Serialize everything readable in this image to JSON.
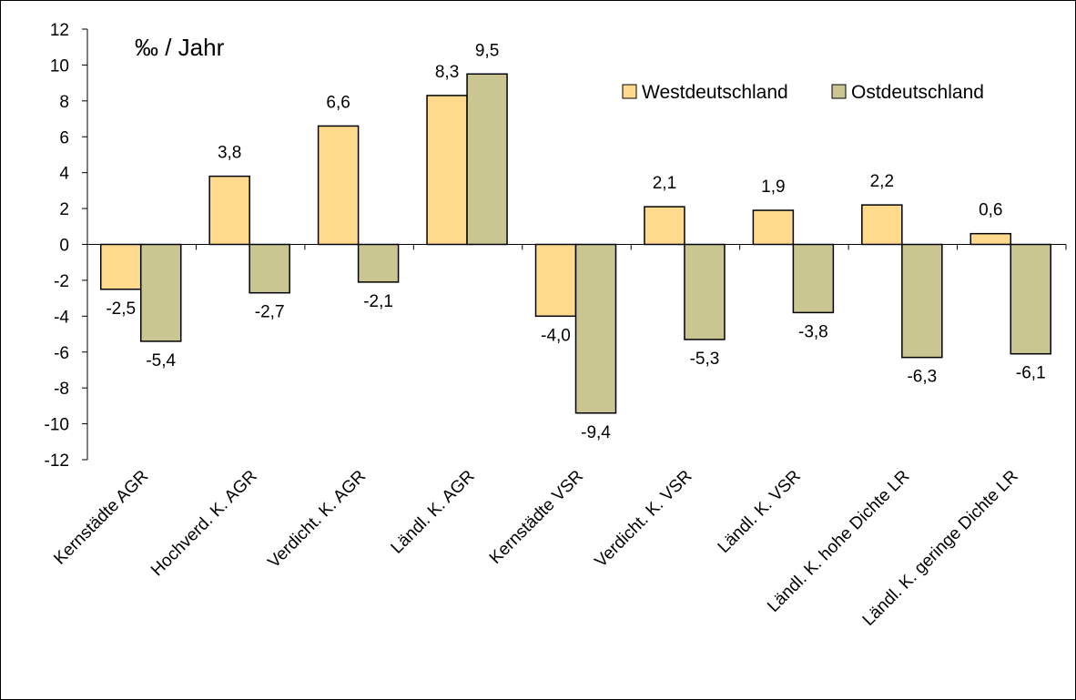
{
  "chart_data": {
    "type": "bar",
    "unit_label": "‰ / Jahr",
    "categories": [
      "Kernstädte AGR",
      "Hochverd. K. AGR",
      "Verdicht. K. AGR",
      "Ländl. K. AGR",
      "Kernstädte VSR",
      "Verdicht. K. VSR",
      "Ländl. K. VSR",
      "Ländl. K. hohe Dichte LR",
      "Ländl. K. geringe Dichte LR"
    ],
    "series": [
      {
        "name": "Westdeutschland",
        "color": "#ffd98c",
        "values": [
          -2.5,
          3.8,
          6.6,
          8.3,
          -4.0,
          2.1,
          1.9,
          2.2,
          0.6
        ],
        "labels": [
          "-2,5",
          "3,8",
          "6,6",
          "8,3",
          "-4,0",
          "2,1",
          "1,9",
          "2,2",
          "0,6"
        ]
      },
      {
        "name": "Ostdeutschland",
        "color": "#c9c692",
        "values": [
          -5.4,
          -2.7,
          -2.1,
          9.5,
          -9.4,
          -5.3,
          -3.8,
          -6.3,
          -6.1
        ],
        "labels": [
          "-5,4",
          "-2,7",
          "-2,1",
          "9,5",
          "-9,4",
          "-5,3",
          "-3,8",
          "-6,3",
          "-6,1"
        ]
      }
    ],
    "ylim": [
      -12,
      12
    ],
    "yticks": [
      -12,
      -10,
      -8,
      -6,
      -4,
      -2,
      0,
      2,
      4,
      6,
      8,
      10,
      12
    ],
    "grid": false,
    "legend": "top-right"
  }
}
